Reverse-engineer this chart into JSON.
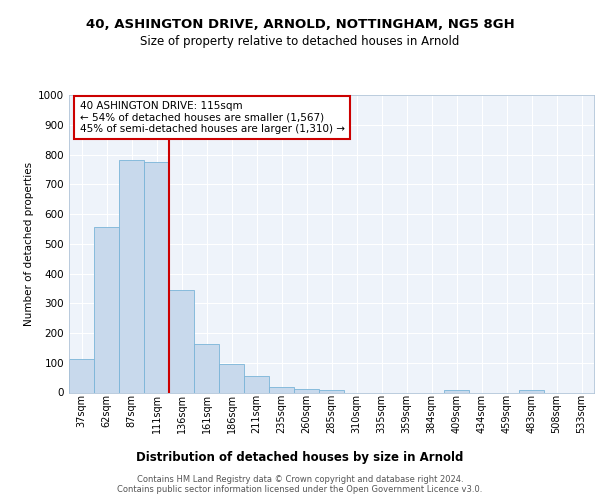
{
  "title1": "40, ASHINGTON DRIVE, ARNOLD, NOTTINGHAM, NG5 8GH",
  "title2": "Size of property relative to detached houses in Arnold",
  "xlabel": "Distribution of detached houses by size in Arnold",
  "ylabel": "Number of detached properties",
  "categories": [
    "37sqm",
    "62sqm",
    "87sqm",
    "111sqm",
    "136sqm",
    "161sqm",
    "186sqm",
    "211sqm",
    "235sqm",
    "260sqm",
    "285sqm",
    "310sqm",
    "335sqm",
    "359sqm",
    "384sqm",
    "409sqm",
    "434sqm",
    "459sqm",
    "483sqm",
    "508sqm",
    "533sqm"
  ],
  "values": [
    113,
    557,
    780,
    775,
    343,
    163,
    96,
    55,
    18,
    12,
    8,
    0,
    0,
    0,
    0,
    7,
    0,
    0,
    9,
    0,
    0
  ],
  "bar_color": "#c8d9ec",
  "bar_edge_color": "#7ab4d8",
  "vline_x": 3.5,
  "vline_color": "#cc0000",
  "annotation_text": "40 ASHINGTON DRIVE: 115sqm\n← 54% of detached houses are smaller (1,567)\n45% of semi-detached houses are larger (1,310) →",
  "annotation_box_color": "#ffffff",
  "annotation_box_edge": "#cc0000",
  "footer": "Contains HM Land Registry data © Crown copyright and database right 2024.\nContains public sector information licensed under the Open Government Licence v3.0.",
  "ylim": [
    0,
    1000
  ],
  "yticks": [
    0,
    100,
    200,
    300,
    400,
    500,
    600,
    700,
    800,
    900,
    1000
  ],
  "bg_color": "#eef3fa",
  "grid_color": "#ffffff",
  "title1_fontsize": 9.5,
  "title2_fontsize": 8.5,
  "ylabel_fontsize": 7.5,
  "xlabel_fontsize": 8.5,
  "tick_fontsize": 7,
  "annot_fontsize": 7.5,
  "footer_fontsize": 6
}
